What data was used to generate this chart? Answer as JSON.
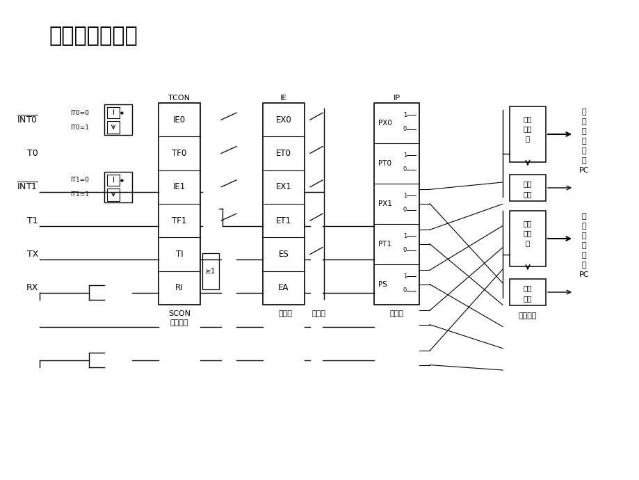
{
  "title": "内部结构如下：",
  "bg_color": "#ffffff",
  "tcon_labels": [
    "IE0",
    "TF0",
    "IE1",
    "TF1",
    "TI",
    "RI"
  ],
  "ie_labels": [
    "EX0",
    "ET0",
    "EX1",
    "ET1",
    "ES",
    "EA"
  ],
  "ip_labels": [
    "PX0",
    "PT0",
    "PX1",
    "PT1",
    "PS"
  ],
  "left_inputs": [
    "INT0",
    "T0",
    "INT1",
    "T1",
    "TX",
    "RX"
  ],
  "it0_labels": [
    "IT0=0",
    "IT0=1"
  ],
  "it1_labels": [
    "IT1=0",
    "IT1=1"
  ],
  "right_labels_high": [
    "高",
    "级",
    "中",
    "断",
    "请",
    "求",
    "PC"
  ],
  "right_labels_low": [
    "低",
    "级",
    "中",
    "断",
    "请",
    "求",
    "PC"
  ],
  "scon_label": "SCON",
  "zdz_label": "中断标志",
  "yyq_label": "源允许",
  "zyq_label": "总允许",
  "yxj_label": "优先级",
  "zryxj_label": "自然优先级",
  "jqdz_label": "硬件查询",
  "sldz_label": "矢量地址"
}
